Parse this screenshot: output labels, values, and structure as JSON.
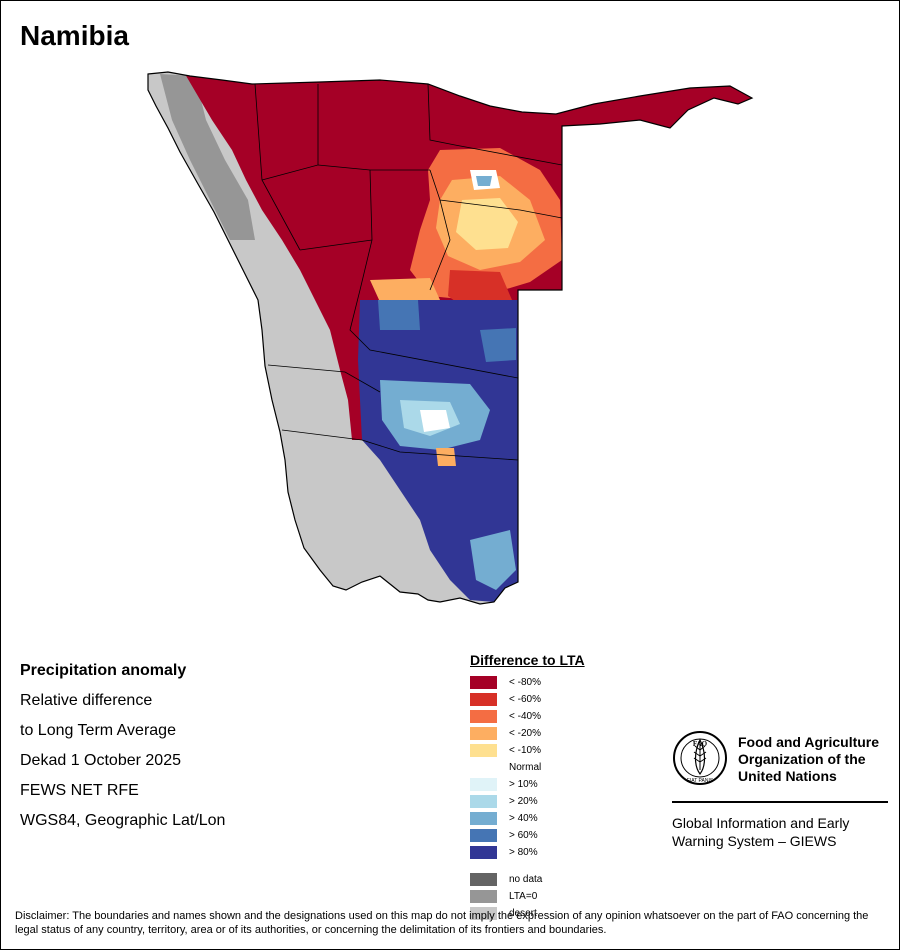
{
  "title": "Namibia",
  "info": {
    "line1": "Precipitation anomaly",
    "line2": "Relative difference",
    "line3": "to Long Term Average",
    "line4": "Dekad 1 October 2025",
    "line5": "FEWS NET RFE",
    "line6": "WGS84, Geographic Lat/Lon"
  },
  "legend": {
    "title": "Difference to LTA",
    "items": [
      {
        "label": "< -80%",
        "color": "#a50026"
      },
      {
        "label": "< -60%",
        "color": "#d73027"
      },
      {
        "label": "< -40%",
        "color": "#f46d43"
      },
      {
        "label": "< -20%",
        "color": "#fdae61"
      },
      {
        "label": "< -10%",
        "color": "#fee090"
      },
      {
        "label": "Normal",
        "color": "#ffffff"
      },
      {
        "label": "> 10%",
        "color": "#e0f3f8"
      },
      {
        "label": "> 20%",
        "color": "#abd9e9"
      },
      {
        "label": "> 40%",
        "color": "#74add1"
      },
      {
        "label": "> 60%",
        "color": "#4575b4"
      },
      {
        "label": "> 80%",
        "color": "#313695"
      }
    ],
    "extra": [
      {
        "label": "no data",
        "color": "#646464"
      },
      {
        "label": "LTA=0",
        "color": "#969696"
      },
      {
        "label": "desert",
        "color": "#c8c8c8"
      }
    ]
  },
  "fao": {
    "logo_text": "FAO",
    "logo_motto": "FIAT PANIS",
    "name_line1": "Food and Agriculture",
    "name_line2": "Organization of the",
    "name_line3": "United Nations",
    "giews_line1": "Global Information and Early",
    "giews_line2": "Warning System – GIEWS"
  },
  "disclaimer": "Disclaimer: The boundaries and names shown and the designations used on this map do not imply the expression of any opinion whatsoever on the part of FAO concerning the legal status of any country, territory, area or of its authorities, or concerning the delimitation of its frontiers and boundaries."
}
